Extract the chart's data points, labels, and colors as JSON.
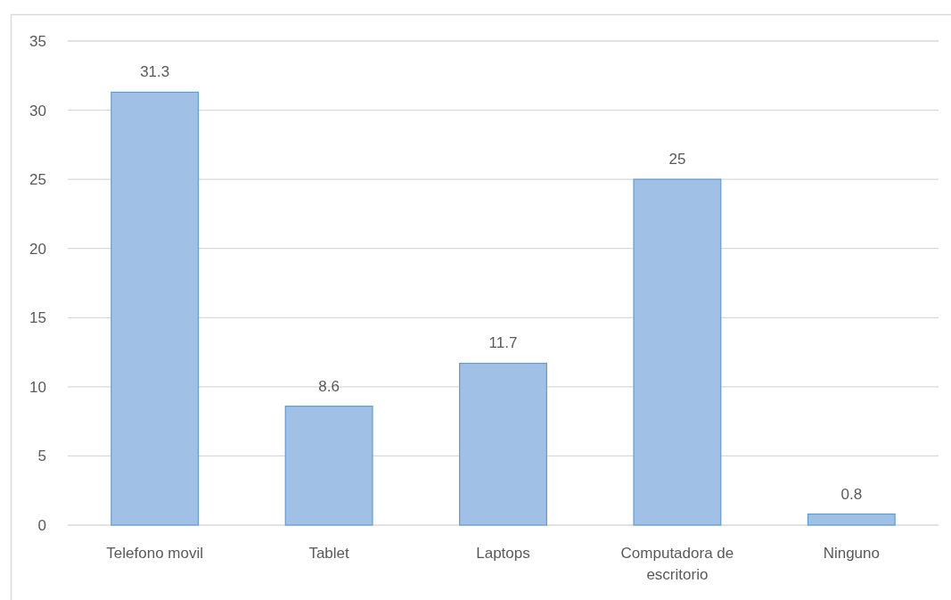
{
  "chart_data": {
    "type": "bar",
    "categories": [
      "Telefono movil",
      "Tablet",
      "Laptops",
      "Computadora de escritorio",
      "Ninguno"
    ],
    "values": [
      31.3,
      8.6,
      11.7,
      25,
      0.8
    ],
    "color": "#a0c0e6",
    "ylim": [
      0,
      35
    ],
    "yticks": [
      0,
      5,
      10,
      15,
      20,
      25,
      30,
      35
    ],
    "grid": "y",
    "data_labels": true
  }
}
